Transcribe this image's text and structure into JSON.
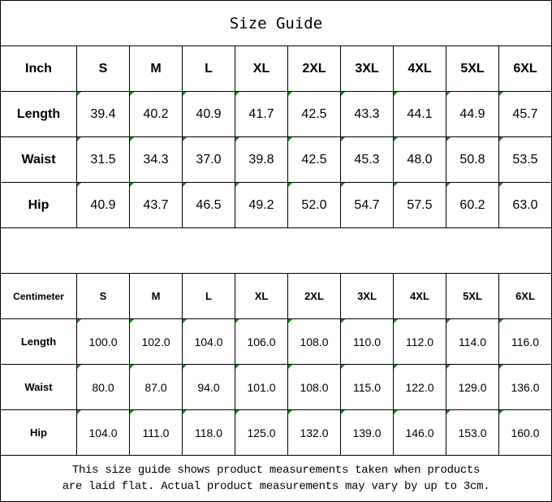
{
  "title": "Size Guide",
  "inch_table": {
    "headers": [
      "Inch",
      "S",
      "M",
      "L",
      "XL",
      "2XL",
      "3XL",
      "4XL",
      "5XL",
      "6XL"
    ],
    "rows": [
      {
        "label": "Length",
        "values": [
          "39.4",
          "40.2",
          "40.9",
          "41.7",
          "42.5",
          "43.3",
          "44.1",
          "44.9",
          "45.7"
        ]
      },
      {
        "label": "Waist",
        "values": [
          "31.5",
          "34.3",
          "37.0",
          "39.8",
          "42.5",
          "45.3",
          "48.0",
          "50.8",
          "53.5"
        ]
      },
      {
        "label": "Hip",
        "values": [
          "40.9",
          "43.7",
          "46.5",
          "49.2",
          "52.0",
          "54.7",
          "57.5",
          "60.2",
          "63.0"
        ]
      }
    ]
  },
  "cm_table": {
    "headers": [
      "Centimeter",
      "S",
      "M",
      "L",
      "XL",
      "2XL",
      "3XL",
      "4XL",
      "5XL",
      "6XL"
    ],
    "rows": [
      {
        "label": "Length",
        "values": [
          "100.0",
          "102.0",
          "104.0",
          "106.0",
          "108.0",
          "110.0",
          "112.0",
          "114.0",
          "116.0"
        ]
      },
      {
        "label": "Waist",
        "values": [
          "80.0",
          "87.0",
          "94.0",
          "101.0",
          "108.0",
          "115.0",
          "122.0",
          "129.0",
          "136.0"
        ]
      },
      {
        "label": "Hip",
        "values": [
          "104.0",
          "111.0",
          "118.0",
          "125.0",
          "132.0",
          "139.0",
          "146.0",
          "153.0",
          "160.0"
        ]
      }
    ]
  },
  "footer": {
    "line1": "This size guide shows product measurements taken when products",
    "line2": "are laid flat. Actual product measurements may vary by up to 3cm."
  },
  "colors": {
    "error_indicator": "#1a8a1a",
    "border": "#000000"
  }
}
